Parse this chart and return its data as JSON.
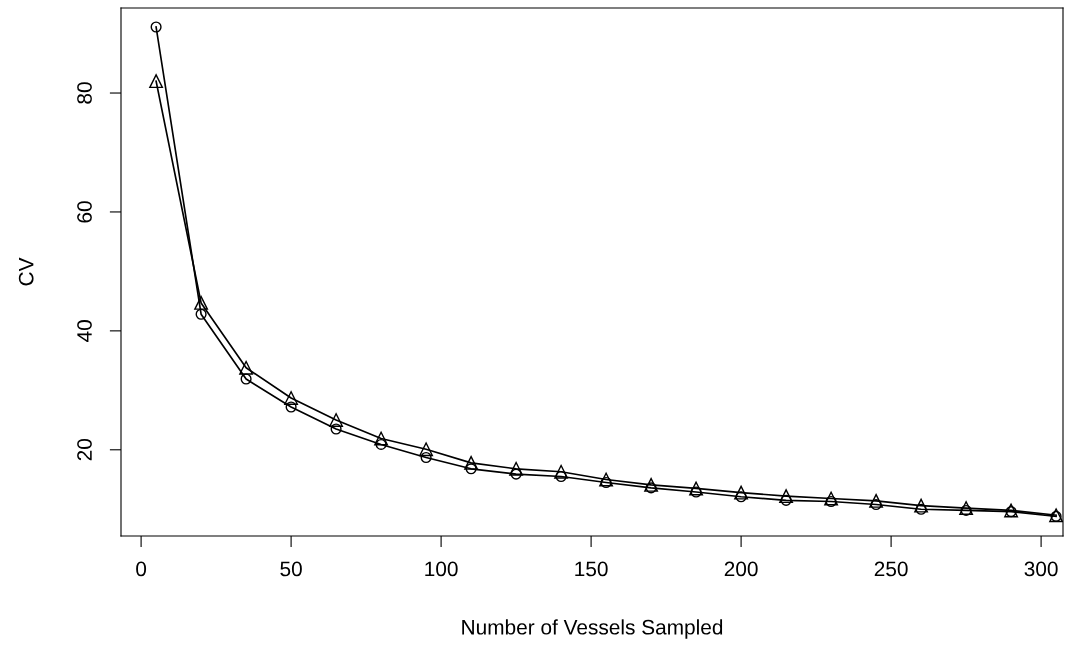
{
  "chart_data": {
    "type": "line",
    "xlabel": "Number of Vessels Sampled",
    "ylabel": "CV",
    "x": [
      5,
      20,
      35,
      50,
      65,
      80,
      95,
      110,
      125,
      140,
      155,
      170,
      185,
      200,
      215,
      230,
      245,
      260,
      275,
      290,
      305
    ],
    "series": [
      {
        "color": "#000000",
        "marker": "circle",
        "values": [
          91.1,
          42.8,
          31.9,
          27.2,
          23.5,
          20.9,
          18.7,
          16.8,
          15.9,
          15.5,
          14.5,
          13.6,
          12.9,
          12.1,
          11.5,
          11.3,
          10.8,
          10.0,
          9.8,
          9.6,
          8.8
        ]
      },
      {
        "color": "#000000",
        "marker": "triangle",
        "values": [
          82.0,
          44.7,
          33.8,
          28.7,
          25.0,
          21.9,
          20.1,
          17.8,
          16.8,
          16.3,
          15.0,
          14.1,
          13.5,
          12.8,
          12.2,
          11.8,
          11.4,
          10.6,
          10.2,
          9.8,
          9.0
        ]
      }
    ],
    "xlim": [
      -6.7,
      307.3
    ],
    "ylim": [
      5.5,
      94.3
    ],
    "xticks": [
      0,
      50,
      100,
      150,
      200,
      250,
      300
    ],
    "yticks": [
      20,
      40,
      60,
      80
    ],
    "grid": false,
    "legend": false,
    "line_style": "solid"
  }
}
